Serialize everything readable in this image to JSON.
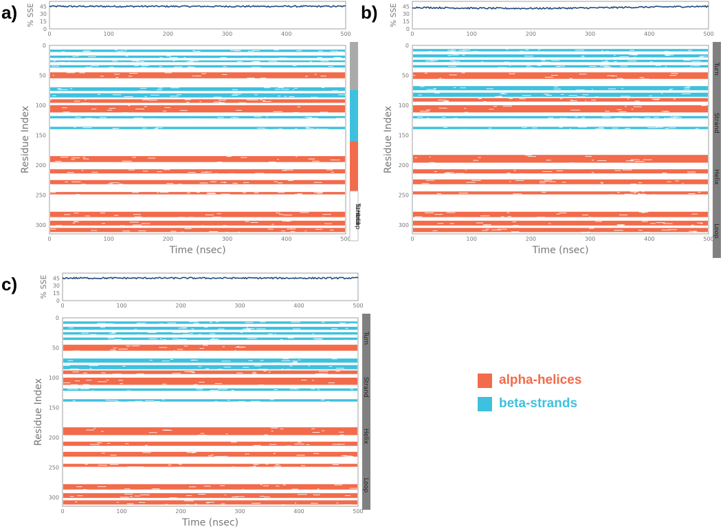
{
  "colors": {
    "helix": "#f26b4b",
    "strand": "#3ec1de",
    "sse_line": "#1f4a7a",
    "sidebar_gray": "#808080"
  },
  "legend": [
    {
      "label": "alpha-helices",
      "color": "#f26b4b"
    },
    {
      "label": "beta-strands",
      "color": "#3ec1de"
    }
  ],
  "chart_data": [
    {
      "type": "heatmap",
      "panel_label": "a)",
      "title": "",
      "sse_ylabel": "% SSE",
      "sse_yticks": [
        0,
        15,
        30,
        45
      ],
      "sse_level": 45,
      "xlabel": "Time (nsec)",
      "ylabel": "Residue Index",
      "x_range": [
        0,
        500
      ],
      "x_ticks": [
        0,
        100,
        200,
        300,
        400,
        500
      ],
      "y_range": [
        0,
        315
      ],
      "y_ticks": [
        0,
        50,
        100,
        150,
        200,
        250,
        300
      ],
      "y_tick_labels": [
        "0",
        "50",
        "100",
        "150",
        "200",
        "250",
        "300"
      ],
      "side_labels": [
        "Turn",
        "Strand",
        "Helix",
        "Loop"
      ],
      "side_labels_collapsed": true,
      "helix_bands": [
        [
          45,
          55
        ],
        [
          90,
          96
        ],
        [
          100,
          112
        ],
        [
          185,
          195
        ],
        [
          207,
          214
        ],
        [
          225,
          232
        ],
        [
          245,
          249
        ],
        [
          278,
          287
        ],
        [
          293,
          301
        ],
        [
          305,
          312
        ]
      ],
      "strand_bands": [
        [
          7,
          11
        ],
        [
          17,
          21
        ],
        [
          25,
          28
        ],
        [
          33,
          37
        ],
        [
          70,
          76
        ],
        [
          80,
          87
        ],
        [
          118,
          122
        ],
        [
          136,
          140
        ]
      ]
    },
    {
      "type": "heatmap",
      "panel_label": "b)",
      "title": "",
      "sse_ylabel": "% SSE",
      "sse_yticks": [
        0,
        15,
        30,
        45
      ],
      "sse_level": 43,
      "xlabel": "Time (nsec)",
      "ylabel": "Residue Index",
      "x_range": [
        0,
        500
      ],
      "x_ticks": [
        0,
        100,
        200,
        300,
        400,
        500
      ],
      "y_range": [
        0,
        315
      ],
      "y_ticks": [
        0,
        50,
        100,
        150,
        200,
        250,
        300
      ],
      "y_tick_labels": [
        "0",
        "50",
        "100",
        "150",
        "200",
        "250",
        "300"
      ],
      "side_labels": [
        "Turn",
        "Strand",
        "Helix",
        "Loop"
      ],
      "side_labels_collapsed": false,
      "helix_bands": [
        [
          45,
          56
        ],
        [
          88,
          94
        ],
        [
          100,
          112
        ],
        [
          183,
          196
        ],
        [
          207,
          214
        ],
        [
          224,
          232
        ],
        [
          244,
          249
        ],
        [
          278,
          287
        ],
        [
          293,
          301
        ],
        [
          305,
          312
        ]
      ],
      "strand_bands": [
        [
          6,
          10
        ],
        [
          15,
          20
        ],
        [
          24,
          28
        ],
        [
          33,
          37
        ],
        [
          68,
          75
        ],
        [
          79,
          86
        ],
        [
          118,
          122
        ],
        [
          136,
          140
        ]
      ]
    },
    {
      "type": "heatmap",
      "panel_label": "c)",
      "title": "",
      "sse_ylabel": "% SSE",
      "sse_yticks": [
        0,
        15,
        30,
        45
      ],
      "sse_level": 45,
      "xlabel": "Time (nsec)",
      "ylabel": "Residue Index",
      "x_range": [
        0,
        500
      ],
      "x_ticks": [
        0,
        100,
        200,
        300,
        400,
        500
      ],
      "y_range": [
        0,
        315
      ],
      "y_ticks": [
        0,
        50,
        100,
        150,
        200,
        250,
        300
      ],
      "y_tick_labels": [
        "0",
        "50",
        "100",
        "150",
        "200",
        "250",
        "300"
      ],
      "side_labels": [
        "Turn",
        "Strand",
        "Helix",
        "Loop"
      ],
      "side_labels_collapsed": false,
      "helix_bands": [
        [
          45,
          55
        ],
        [
          88,
          94
        ],
        [
          100,
          112
        ],
        [
          183,
          196
        ],
        [
          207,
          214
        ],
        [
          224,
          232
        ],
        [
          244,
          249
        ],
        [
          278,
          287
        ],
        [
          293,
          301
        ],
        [
          305,
          312
        ]
      ],
      "strand_bands": [
        [
          6,
          10
        ],
        [
          15,
          20
        ],
        [
          24,
          28
        ],
        [
          33,
          37
        ],
        [
          68,
          75
        ],
        [
          79,
          86
        ],
        [
          118,
          122
        ],
        [
          136,
          140
        ]
      ]
    }
  ]
}
